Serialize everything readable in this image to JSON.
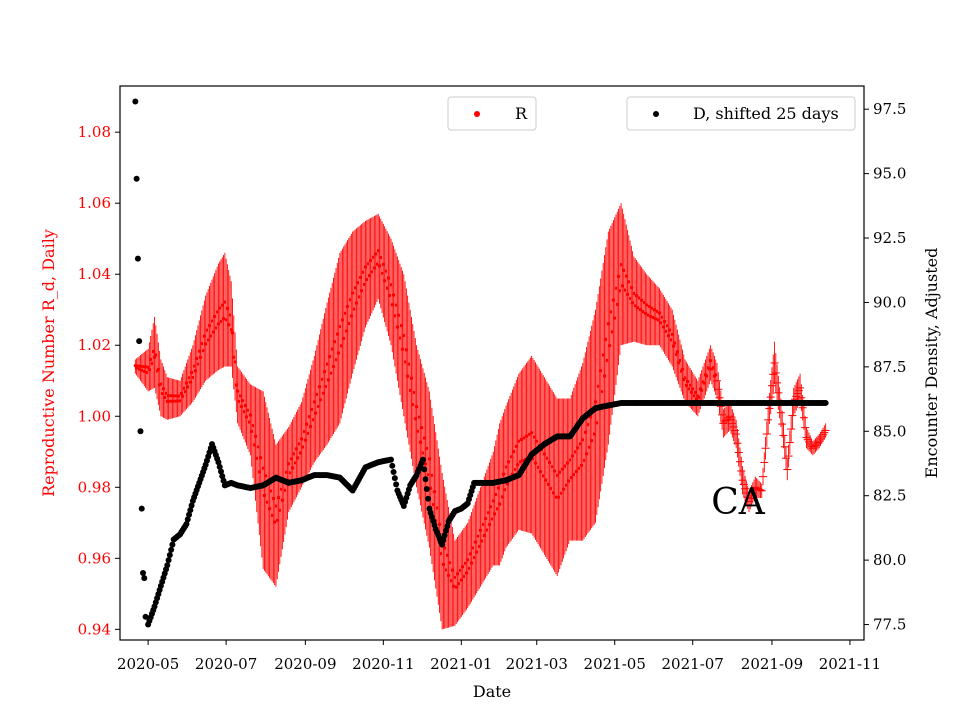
{
  "chart_data": {
    "type": "scatter",
    "region_label": "CA",
    "xlabel": "Date",
    "ylabel_left": "Reproductive Number R_d, Daily",
    "ylabel_right": "Encounter Density, Adjusted",
    "x_ticks": [
      "2020-05",
      "2020-07",
      "2020-09",
      "2020-11",
      "2021-01",
      "2021-03",
      "2021-05",
      "2021-07",
      "2021-09",
      "2021-11"
    ],
    "y_left_ticks": [
      "0.94",
      "0.96",
      "0.98",
      "1.00",
      "1.02",
      "1.04",
      "1.06",
      "1.08"
    ],
    "y_right_ticks": [
      "77.5",
      "80.0",
      "82.5",
      "85.0",
      "87.5",
      "90.0",
      "92.5",
      "95.0",
      "97.5"
    ],
    "ylim_left": [
      0.937,
      1.093
    ],
    "ylim_right": [
      76.9,
      98.4
    ],
    "xlim_days": [
      -22,
      560
    ],
    "x_origin": "2020-05-01",
    "colors": {
      "R": "#ff0000",
      "D": "#000000",
      "left_axis": "#ff0000"
    },
    "legend": {
      "R": "R",
      "D": "D, shifted 25 days"
    },
    "series": [
      {
        "name": "R",
        "axis": "left",
        "x_days": [
          -10,
          0,
          5,
          10,
          15,
          25,
          35,
          45,
          55,
          60,
          65,
          70,
          80,
          90,
          100,
          110,
          120,
          130,
          140,
          150,
          160,
          170,
          180,
          190,
          200,
          210,
          220,
          230,
          240,
          250,
          260,
          270,
          275,
          280,
          290,
          300,
          310,
          320,
          330,
          340,
          350,
          360,
          370,
          380,
          390,
          400,
          410,
          420,
          430,
          440,
          445,
          450,
          455,
          460,
          465,
          470,
          475,
          480,
          485,
          490,
          495,
          500,
          505,
          510,
          515,
          520,
          525,
          530
        ],
        "center": [
          1.014,
          1.013,
          1.018,
          1.008,
          1.005,
          1.005,
          1.012,
          1.022,
          1.028,
          1.03,
          1.026,
          1.006,
          0.999,
          0.982,
          0.972,
          0.985,
          0.992,
          1.002,
          1.012,
          1.022,
          1.032,
          1.04,
          1.045,
          1.035,
          1.02,
          1.0,
          0.985,
          0.962,
          0.953,
          0.958,
          0.966,
          0.974,
          0.978,
          0.983,
          0.99,
          0.992,
          0.986,
          0.98,
          0.985,
          0.99,
          1.0,
          1.022,
          1.04,
          1.033,
          1.03,
          1.028,
          1.022,
          1.01,
          1.005,
          1.015,
          1.01,
          0.998,
          1.0,
          0.995,
          0.982,
          0.976,
          0.98,
          0.979,
          0.999,
          1.015,
          1.001,
          0.985,
          1.004,
          1.008,
          0.994,
          0.991,
          0.993,
          0.996
        ],
        "half_range": [
          0.002,
          0.006,
          0.01,
          0.008,
          0.006,
          0.005,
          0.008,
          0.012,
          0.015,
          0.016,
          0.012,
          0.008,
          0.01,
          0.025,
          0.02,
          0.012,
          0.012,
          0.015,
          0.02,
          0.024,
          0.02,
          0.015,
          0.012,
          0.015,
          0.02,
          0.02,
          0.022,
          0.022,
          0.012,
          0.012,
          0.014,
          0.016,
          0.02,
          0.02,
          0.022,
          0.025,
          0.025,
          0.025,
          0.02,
          0.025,
          0.03,
          0.03,
          0.02,
          0.012,
          0.01,
          0.008,
          0.008,
          0.006,
          0.005,
          0.005,
          0.005,
          0.004,
          0.004,
          0.004,
          0.004,
          0.003,
          0.003,
          0.002,
          0.004,
          0.006,
          0.004,
          0.003,
          0.004,
          0.004,
          0.003,
          0.002,
          0.002,
          0.002
        ]
      },
      {
        "name": "D, shifted 25 days",
        "axis": "right",
        "x_days": [
          -10,
          -9,
          -8,
          -7,
          -6,
          -5,
          -4,
          -3,
          -2,
          0,
          5,
          10,
          15,
          20,
          25,
          30,
          35,
          40,
          45,
          50,
          55,
          60,
          65,
          70,
          80,
          90,
          100,
          110,
          120,
          130,
          140,
          150,
          160,
          170,
          180,
          190,
          195,
          200,
          205,
          210,
          215,
          220,
          225,
          230,
          235,
          240,
          245,
          250,
          255,
          260,
          270,
          280,
          290,
          300,
          310,
          320,
          330,
          340,
          350,
          360,
          370,
          380,
          390,
          400,
          410,
          420,
          430,
          440,
          450,
          460,
          470,
          480,
          490,
          500,
          510,
          520,
          530
        ],
        "values": [
          97.8,
          94.8,
          91.7,
          88.5,
          85.0,
          82.0,
          79.5,
          79.3,
          77.8,
          77.5,
          78.2,
          79.0,
          79.8,
          80.8,
          81.0,
          81.4,
          82.3,
          83.0,
          83.7,
          84.5,
          83.8,
          82.9,
          83.0,
          82.9,
          82.8,
          82.9,
          83.2,
          83.0,
          83.1,
          83.3,
          83.3,
          83.2,
          82.7,
          83.6,
          83.8,
          83.9,
          82.7,
          82.1,
          82.9,
          83.3,
          83.9,
          82.0,
          81.2,
          80.6,
          81.5,
          81.9,
          82.0,
          82.2,
          83.0,
          83.0,
          83.0,
          83.1,
          83.3,
          84.1,
          84.5,
          84.8,
          84.8,
          85.5,
          85.9,
          86.0,
          86.1,
          86.1,
          86.1,
          86.1,
          86.1,
          86.1,
          86.1,
          86.1,
          86.1,
          86.1,
          86.1,
          86.1,
          86.1,
          86.1,
          86.1,
          86.1,
          86.1
        ]
      }
    ]
  }
}
